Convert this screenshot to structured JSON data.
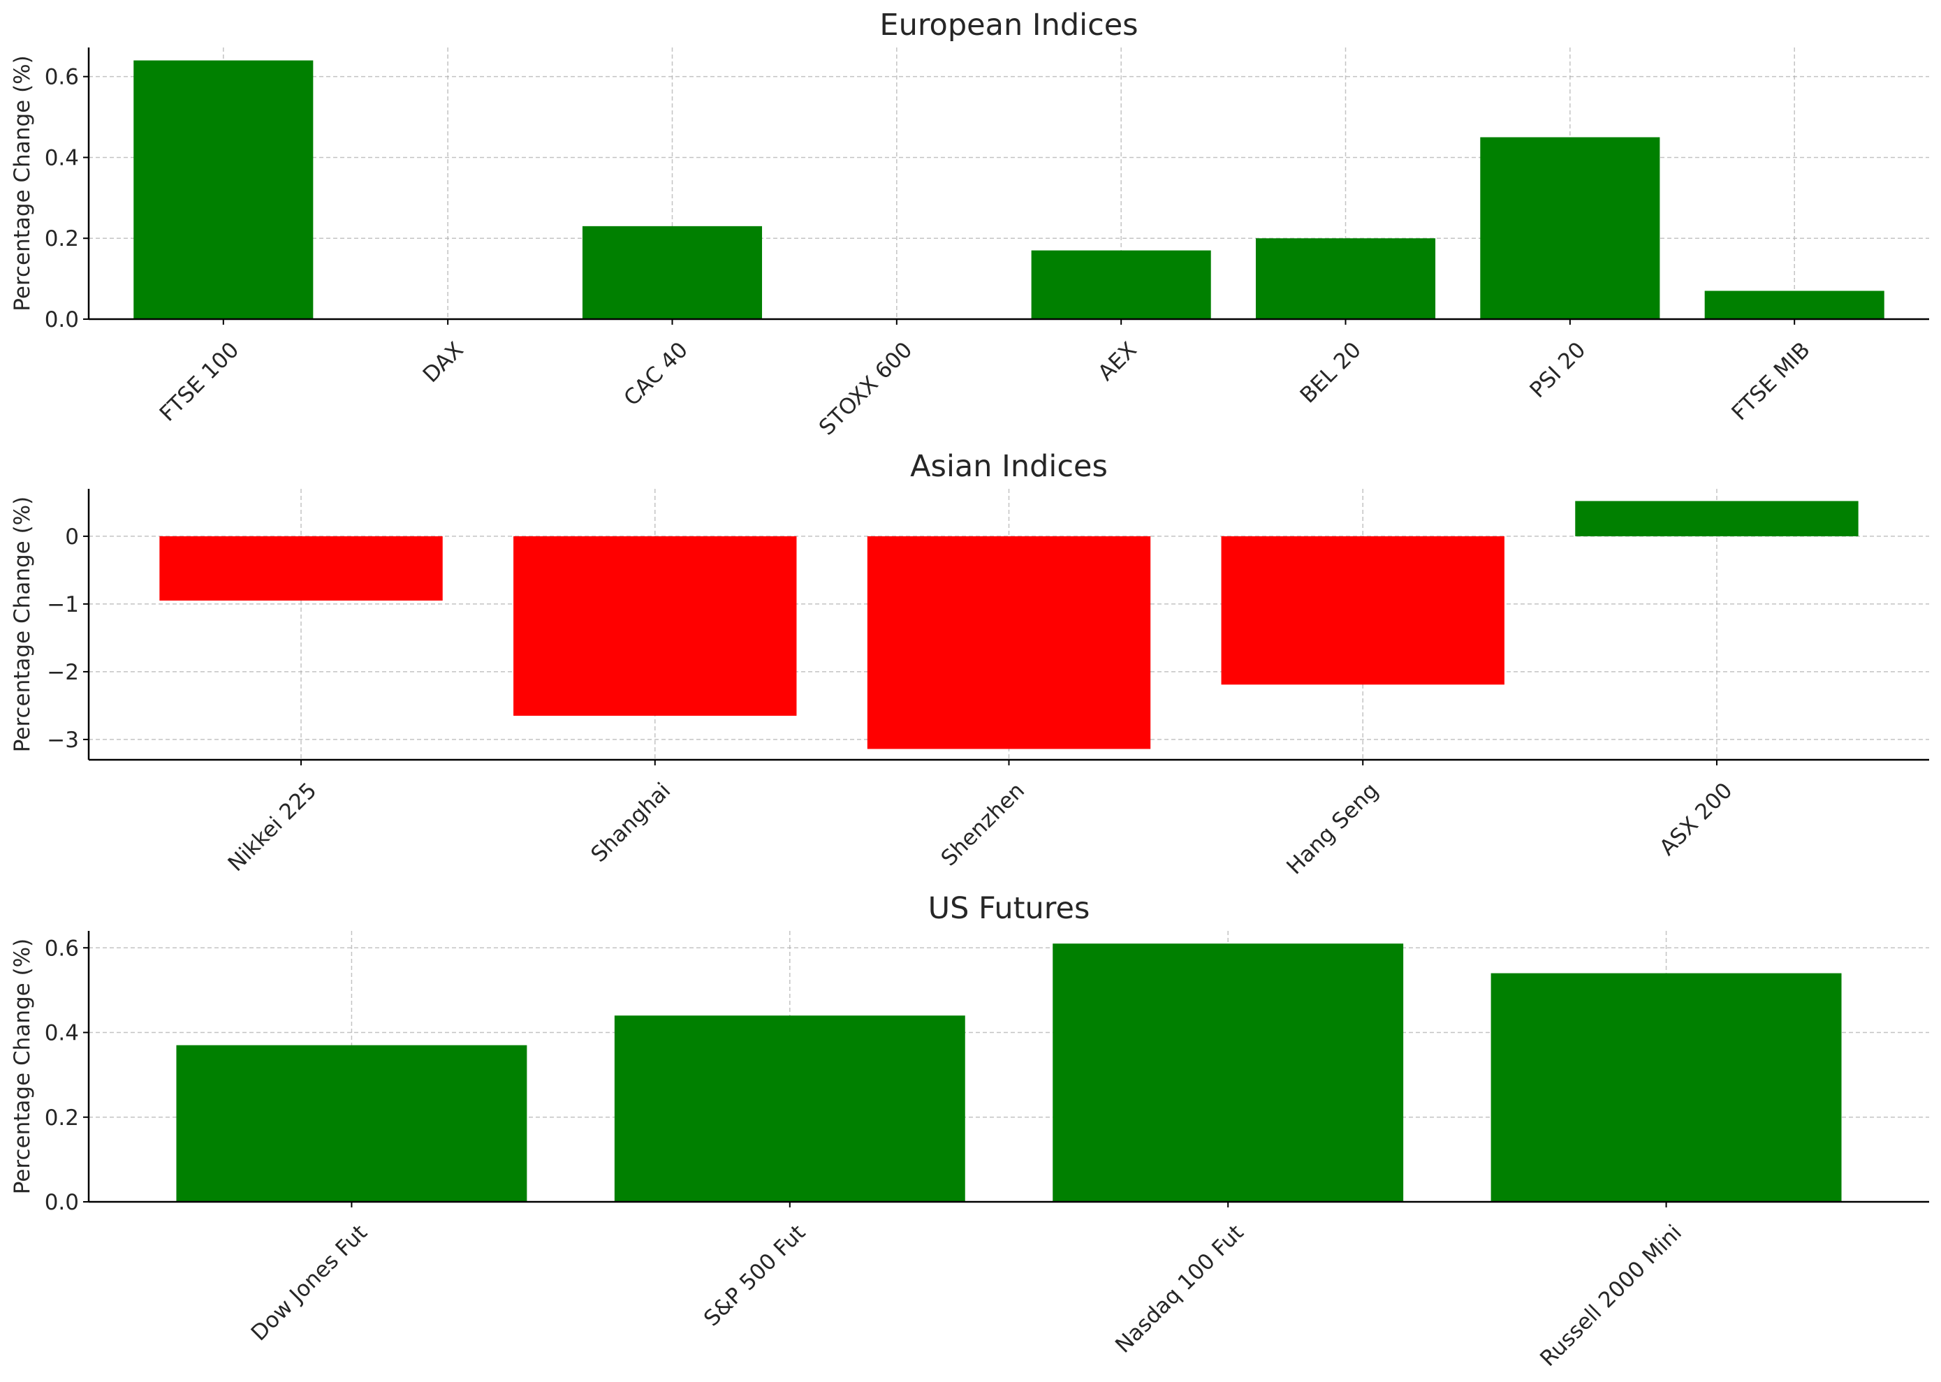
{
  "colors": {
    "positive": "#008000",
    "negative": "#ff0000"
  },
  "chart_data": [
    {
      "type": "bar",
      "title": "European Indices",
      "ylabel": "Percentage Change (%)",
      "categories": [
        "FTSE 100",
        "DAX",
        "CAC 40",
        "STOXX 600",
        "AEX",
        "BEL 20",
        "PSI 20",
        "FTSE MIB"
      ],
      "values": [
        0.64,
        0.0,
        0.23,
        0.0,
        0.17,
        0.2,
        0.45,
        0.07
      ],
      "ylim": [
        0,
        0.672
      ],
      "yticks": [
        0.0,
        0.2,
        0.4,
        0.6
      ],
      "ytick_labels": [
        "0.0",
        "0.2",
        "0.4",
        "0.6"
      ],
      "grid": true
    },
    {
      "type": "bar",
      "title": "Asian Indices",
      "ylabel": "Percentage Change (%)",
      "categories": [
        "Nikkei 225",
        "Shanghai",
        "Shenzhen",
        "Hang Seng",
        "ASX 200"
      ],
      "values": [
        -0.95,
        -2.65,
        -3.14,
        -2.19,
        0.52
      ],
      "ylim": [
        -3.3,
        0.7
      ],
      "yticks": [
        -3,
        -2,
        -1,
        0
      ],
      "ytick_labels": [
        "−3",
        "−2",
        "−1",
        "0"
      ],
      "grid": true
    },
    {
      "type": "bar",
      "title": "US Futures",
      "ylabel": "Percentage Change (%)",
      "categories": [
        "Dow Jones Fut",
        "S&P 500 Fut",
        "Nasdaq 100 Fut",
        "Russell 2000 Mini"
      ],
      "values": [
        0.37,
        0.44,
        0.61,
        0.54
      ],
      "ylim": [
        0,
        0.64
      ],
      "yticks": [
        0.0,
        0.2,
        0.4,
        0.6
      ],
      "ytick_labels": [
        "0.0",
        "0.2",
        "0.4",
        "0.6"
      ],
      "grid": true
    }
  ]
}
